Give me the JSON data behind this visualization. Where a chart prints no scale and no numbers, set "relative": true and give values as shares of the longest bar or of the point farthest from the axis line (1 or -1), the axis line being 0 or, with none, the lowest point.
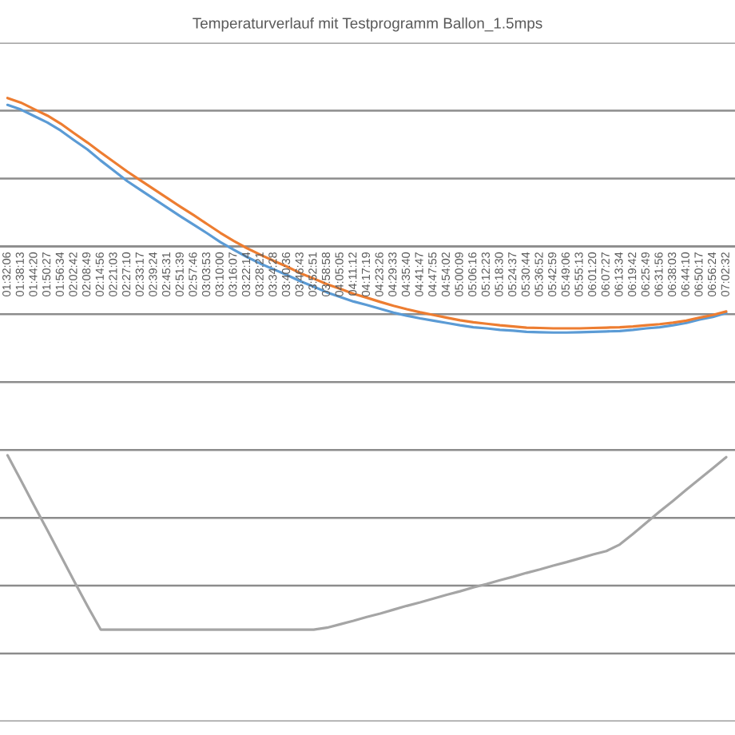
{
  "chart_data": {
    "type": "line",
    "title": "Temperaturverlauf mit Testprogramm Ballon_1.5mps",
    "relative": true,
    "grid": "y",
    "line_style": "solid",
    "tick_labels": "x",
    "categories": [
      "01:32:06",
      "01:38:13",
      "01:44:20",
      "01:50:27",
      "01:56:34",
      "02:02:42",
      "02:08:49",
      "02:14:56",
      "02:21:03",
      "02:27:10",
      "02:33:17",
      "02:39:24",
      "02:45:31",
      "02:51:39",
      "02:57:46",
      "03:03:53",
      "03:10:00",
      "03:16:07",
      "03:22:14",
      "03:28:21",
      "03:34:28",
      "03:40:36",
      "03:46:43",
      "03:52:51",
      "03:58:58",
      "04:05:05",
      "04:11:12",
      "04:17:19",
      "04:23:26",
      "04:29:33",
      "04:35:40",
      "04:41:47",
      "04:47:55",
      "04:54:02",
      "05:00:09",
      "05:06:16",
      "05:12:23",
      "05:18:30",
      "05:24:37",
      "05:30:44",
      "05:36:52",
      "05:42:59",
      "05:49:06",
      "05:55:13",
      "06:01:20",
      "06:07:27",
      "06:13:34",
      "06:19:42",
      "06:25:49",
      "06:31:56",
      "06:38:03",
      "06:44:10",
      "06:50:17",
      "06:56:24",
      "07:02:32"
    ],
    "series": [
      {
        "color": "#5b9bd5",
        "values": [
          0.369,
          0.357,
          0.34,
          0.323,
          0.302,
          0.277,
          0.253,
          0.224,
          0.197,
          0.17,
          0.147,
          0.124,
          0.101,
          0.078,
          0.056,
          0.034,
          0.011,
          -0.009,
          -0.028,
          -0.045,
          -0.06,
          -0.075,
          -0.091,
          -0.105,
          -0.12,
          -0.132,
          -0.144,
          -0.153,
          -0.163,
          -0.173,
          -0.181,
          -0.188,
          -0.194,
          -0.2,
          -0.206,
          -0.211,
          -0.214,
          -0.218,
          -0.22,
          -0.223,
          -0.224,
          -0.225,
          -0.225,
          -0.224,
          -0.223,
          -0.222,
          -0.221,
          -0.218,
          -0.214,
          -0.211,
          -0.206,
          -0.2,
          -0.191,
          -0.184,
          -0.174
        ]
      },
      {
        "color": "#ed7d31",
        "values": [
          0.387,
          0.375,
          0.358,
          0.341,
          0.32,
          0.295,
          0.271,
          0.245,
          0.22,
          0.195,
          0.172,
          0.149,
          0.126,
          0.103,
          0.081,
          0.058,
          0.035,
          0.014,
          -0.005,
          -0.022,
          -0.038,
          -0.053,
          -0.07,
          -0.084,
          -0.099,
          -0.111,
          -0.124,
          -0.134,
          -0.145,
          -0.155,
          -0.164,
          -0.172,
          -0.179,
          -0.186,
          -0.193,
          -0.198,
          -0.202,
          -0.206,
          -0.209,
          -0.212,
          -0.213,
          -0.214,
          -0.214,
          -0.214,
          -0.213,
          -0.212,
          -0.211,
          -0.209,
          -0.206,
          -0.203,
          -0.199,
          -0.194,
          -0.186,
          -0.179,
          -0.17
        ]
      },
      {
        "color": "#a5a5a5",
        "values": [
          -0.545,
          -0.61,
          -0.676,
          -0.741,
          -0.807,
          -0.873,
          -0.938,
          -1.0,
          -1.0,
          -1.0,
          -1.0,
          -1.0,
          -1.0,
          -1.0,
          -1.0,
          -1.0,
          -1.0,
          -1.0,
          -1.0,
          -1.0,
          -1.0,
          -1.0,
          -1.0,
          -1.0,
          -0.995,
          -0.986,
          -0.977,
          -0.967,
          -0.958,
          -0.948,
          -0.938,
          -0.929,
          -0.919,
          -0.909,
          -0.9,
          -0.89,
          -0.881,
          -0.871,
          -0.862,
          -0.852,
          -0.843,
          -0.833,
          -0.824,
          -0.814,
          -0.804,
          -0.795,
          -0.778,
          -0.75,
          -0.721,
          -0.692,
          -0.664,
          -0.635,
          -0.607,
          -0.579,
          -0.55
        ]
      }
    ]
  }
}
